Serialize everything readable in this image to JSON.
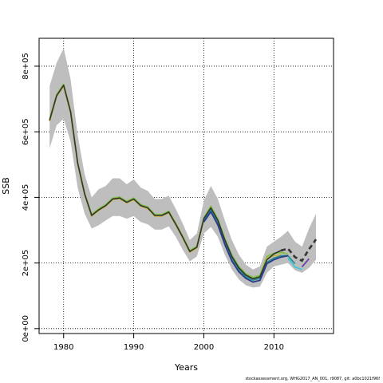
{
  "footer_note": "stockassessment.org, WHG2017_AN_001, r9087, git: a0bc1021f96f",
  "chart_data": {
    "type": "line",
    "title": "",
    "xlabel": "Years",
    "ylabel": "SSB",
    "xlim": [
      1976.5,
      2018.5
    ],
    "ylim": [
      -15000,
      885000
    ],
    "grid": true,
    "grid_style": "dotted",
    "x_ticks": [
      1980,
      1990,
      2000,
      2010
    ],
    "y_ticks": [
      0,
      200000,
      400000,
      600000,
      800000
    ],
    "y_tick_labels": [
      "0e+00",
      "2e+05",
      "4e+05",
      "6e+05",
      "8e+05"
    ],
    "colors": {
      "band": "#bebebe",
      "main": "#333333",
      "green": "#7fc241",
      "yellow": "#c8b43c",
      "teal": "#2a8c8c",
      "navy": "#2b3a8c",
      "purple": "#6a3fb0",
      "cyan": "#3cc8d8"
    },
    "band": {
      "x": [
        1978,
        1979,
        1980,
        1981,
        1982,
        1983,
        1984,
        1985,
        1986,
        1987,
        1988,
        1989,
        1990,
        1991,
        1992,
        1993,
        1994,
        1995,
        1996,
        1997,
        1998,
        1999,
        2000,
        2001,
        2002,
        2003,
        2004,
        2005,
        2006,
        2007,
        2008,
        2009,
        2010,
        2011,
        2012,
        2013,
        2014,
        2015,
        2016
      ],
      "upper": [
        740000,
        810000,
        855000,
        760000,
        590000,
        470000,
        400000,
        425000,
        435000,
        458000,
        458000,
        440000,
        455000,
        430000,
        420000,
        395000,
        395000,
        405000,
        365000,
        320000,
        270000,
        290000,
        390000,
        435000,
        395000,
        330000,
        270000,
        225000,
        195000,
        180000,
        190000,
        250000,
        265000,
        280000,
        298000,
        265000,
        250000,
        305000,
        350000
      ],
      "lower": [
        550000,
        620000,
        640000,
        570000,
        430000,
        350000,
        305000,
        315000,
        330000,
        343000,
        343000,
        335000,
        343000,
        325000,
        318000,
        302000,
        302000,
        312000,
        280000,
        240000,
        205000,
        220000,
        290000,
        310000,
        280000,
        225000,
        180000,
        150000,
        132000,
        125000,
        128000,
        170000,
        190000,
        195000,
        200000,
        178000,
        170000,
        185000,
        210000
      ]
    },
    "series": [
      {
        "color": "#333333",
        "dashed_from": 2011,
        "x": [
          1978,
          1979,
          1980,
          1981,
          1982,
          1983,
          1984,
          1985,
          1986,
          1987,
          1988,
          1989,
          1990,
          1991,
          1992,
          1993,
          1994,
          1995,
          1996,
          1997,
          1998,
          1999,
          2000,
          2001,
          2002,
          2003,
          2004,
          2005,
          2006,
          2007,
          2008,
          2009,
          2010,
          2011,
          2012,
          2013,
          2014,
          2015,
          2016
        ],
        "values": [
          635000,
          710000,
          742000,
          660000,
          505000,
          410000,
          345000,
          362000,
          375000,
          395000,
          398000,
          385000,
          395000,
          375000,
          368000,
          345000,
          345000,
          355000,
          318000,
          278000,
          235000,
          248000,
          335000,
          368000,
          330000,
          270000,
          220000,
          185000,
          163000,
          152000,
          158000,
          210000,
          228000,
          238000,
          244000,
          218000,
          207000,
          242000,
          272000
        ]
      },
      {
        "color": "#7fc241",
        "x": [
          1978,
          1979,
          1980,
          1981,
          1982,
          1983,
          1984,
          1985,
          1986,
          1987,
          1988,
          1989,
          1990,
          1991,
          1992,
          1993,
          1994,
          1995,
          1996,
          1997,
          1998,
          1999,
          2000,
          2001,
          2002,
          2003,
          2004,
          2005,
          2006,
          2007,
          2008,
          2009,
          2010,
          2011,
          2012
        ],
        "values": [
          638000,
          713000,
          745000,
          663000,
          508000,
          413000,
          348000,
          365000,
          378000,
          398000,
          401000,
          388000,
          398000,
          378000,
          371000,
          348000,
          348000,
          358000,
          321000,
          281000,
          238000,
          251000,
          338000,
          373000,
          334000,
          274000,
          224000,
          189000,
          167000,
          156000,
          162000,
          220000,
          230000,
          232000,
          228000
        ]
      },
      {
        "color": "#c8b43c",
        "x": [
          1978,
          1979,
          1980,
          1981,
          1982,
          1983,
          1984,
          1985,
          1986,
          1987,
          1988,
          1989,
          1990,
          1991,
          1992,
          1993,
          1994,
          1995,
          1996,
          1997,
          1998,
          1999,
          2000,
          2001,
          2002,
          2003,
          2004,
          2005,
          2006,
          2007,
          2008,
          2009,
          2010,
          2011
        ],
        "values": [
          632000,
          708000,
          739000,
          657000,
          502000,
          408000,
          343000,
          360000,
          373000,
          393000,
          396000,
          383000,
          393000,
          373000,
          366000,
          343000,
          343000,
          353000,
          316000,
          276000,
          233000,
          246000,
          333000,
          365000,
          327000,
          267000,
          217000,
          182000,
          160000,
          149000,
          155000,
          215000,
          222000,
          225000
        ]
      },
      {
        "color": "#2a8c8c",
        "x": [
          2000,
          2001,
          2002,
          2003,
          2004,
          2005,
          2006,
          2007,
          2008,
          2009,
          2010,
          2011,
          2012,
          2013
        ],
        "values": [
          330000,
          362000,
          322000,
          262000,
          212000,
          178000,
          158000,
          148000,
          153000,
          202000,
          215000,
          222000,
          222000,
          198000
        ]
      },
      {
        "color": "#2b3a8c",
        "x": [
          2000,
          2001,
          2002,
          2003,
          2004,
          2005,
          2006,
          2007,
          2008,
          2009,
          2010,
          2011,
          2012
        ],
        "values": [
          325000,
          356000,
          316000,
          256000,
          206000,
          173000,
          153000,
          142000,
          147000,
          198000,
          210000,
          218000,
          222000
        ]
      },
      {
        "color": "#6a3fb0",
        "x": [
          2014,
          2015
        ],
        "values": [
          188000,
          213000
        ]
      },
      {
        "color": "#3cc8d8",
        "x": [
          2012,
          2013,
          2014
        ],
        "values": [
          215000,
          188000,
          180000
        ]
      }
    ]
  }
}
